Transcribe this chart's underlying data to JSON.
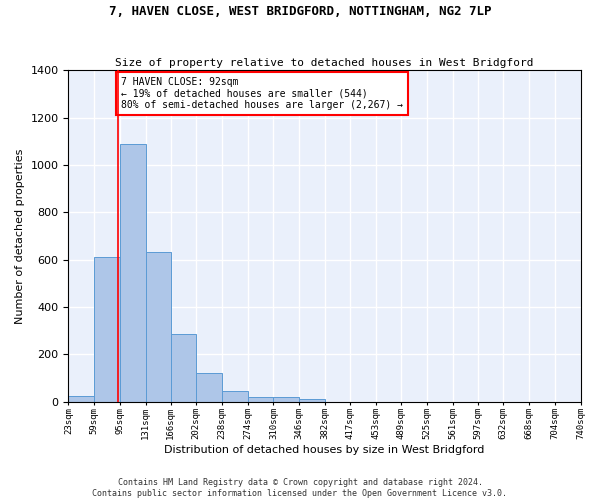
{
  "title": "7, HAVEN CLOSE, WEST BRIDGFORD, NOTTINGHAM, NG2 7LP",
  "subtitle": "Size of property relative to detached houses in West Bridgford",
  "xlabel": "Distribution of detached houses by size in West Bridgford",
  "ylabel": "Number of detached properties",
  "bin_labels": [
    "23sqm",
    "59sqm",
    "95sqm",
    "131sqm",
    "166sqm",
    "202sqm",
    "238sqm",
    "274sqm",
    "310sqm",
    "346sqm",
    "382sqm",
    "417sqm",
    "453sqm",
    "489sqm",
    "525sqm",
    "561sqm",
    "597sqm",
    "632sqm",
    "668sqm",
    "704sqm",
    "740sqm"
  ],
  "bar_heights": [
    25,
    610,
    1090,
    630,
    285,
    120,
    45,
    20,
    20,
    10,
    0,
    0,
    0,
    0,
    0,
    0,
    0,
    0,
    0,
    0
  ],
  "bar_color": "#aec6e8",
  "bar_edge_color": "#5b9bd5",
  "background_color": "#eaf0fb",
  "grid_color": "#ffffff",
  "red_line_x": 92,
  "bin_edges": [
    23,
    59,
    95,
    131,
    166,
    202,
    238,
    274,
    310,
    346,
    382,
    417,
    453,
    489,
    525,
    561,
    597,
    632,
    668,
    704,
    740
  ],
  "annotation_text": "7 HAVEN CLOSE: 92sqm\n← 19% of detached houses are smaller (544)\n80% of semi-detached houses are larger (2,267) →",
  "ylim": [
    0,
    1400
  ],
  "yticks": [
    0,
    200,
    400,
    600,
    800,
    1000,
    1200,
    1400
  ],
  "footer_line1": "Contains HM Land Registry data © Crown copyright and database right 2024.",
  "footer_line2": "Contains public sector information licensed under the Open Government Licence v3.0."
}
